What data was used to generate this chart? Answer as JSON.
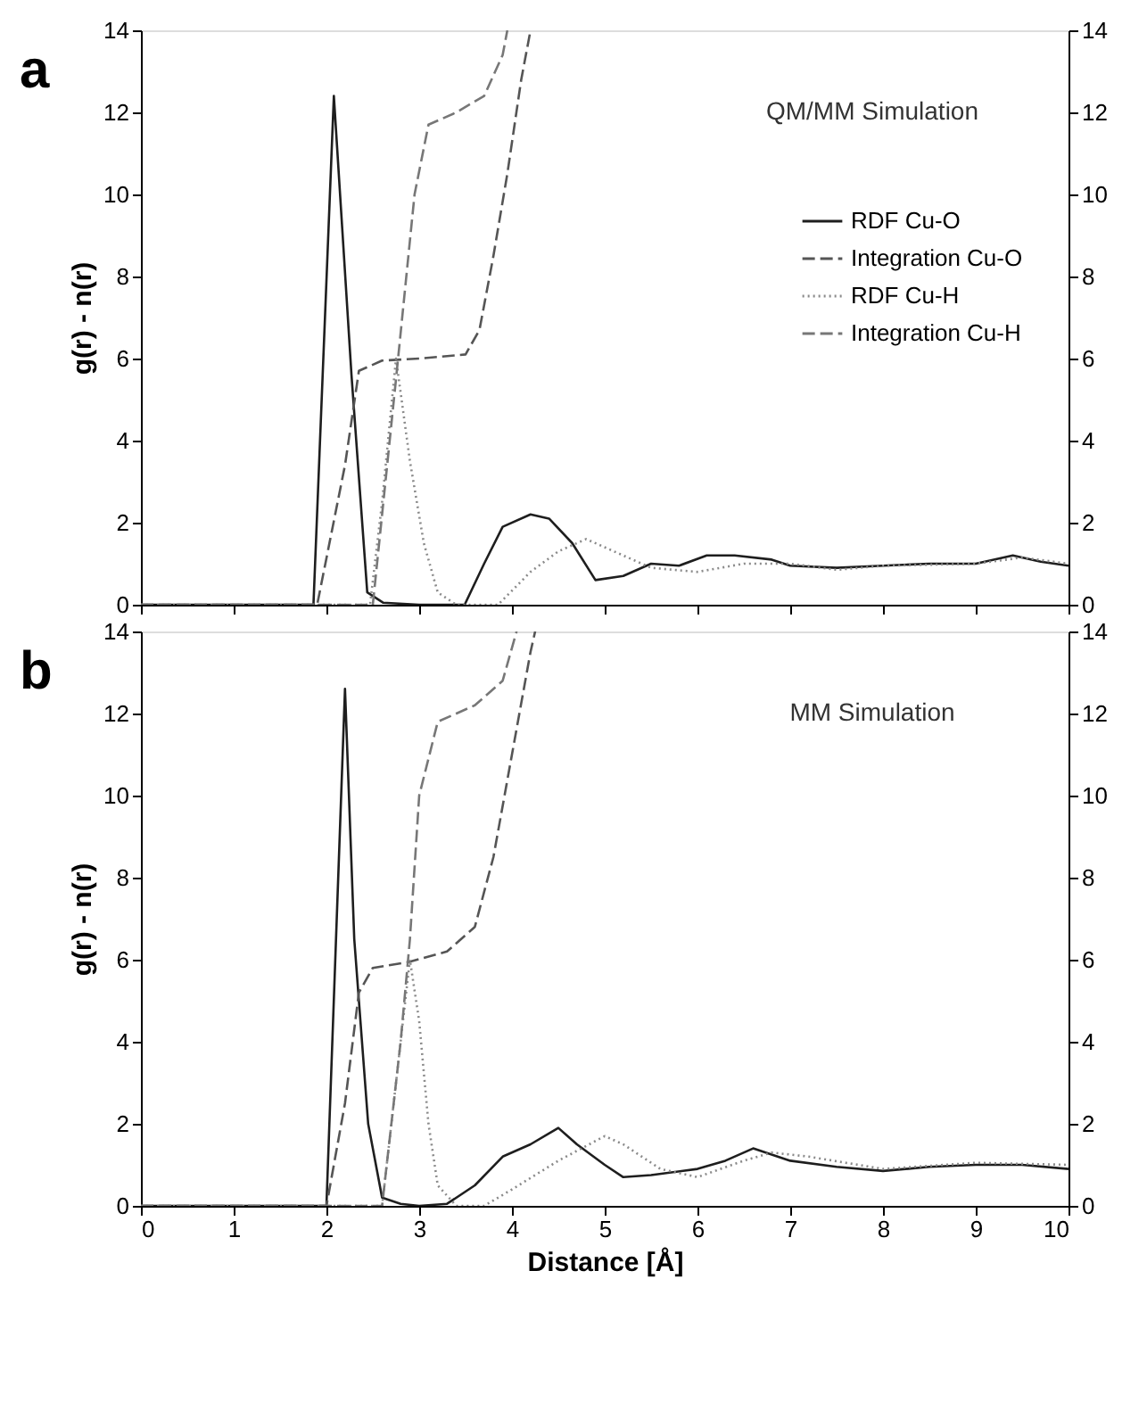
{
  "chart_data": [
    {
      "type": "line",
      "annotations": [
        "a",
        "QM/MM Simulation"
      ],
      "ylabel": "g(r) - n(r)",
      "xlim": [
        0,
        10
      ],
      "xticks": [
        0,
        1,
        2,
        3,
        4,
        5,
        6,
        7,
        8,
        9,
        10
      ],
      "ylim": [
        0,
        14
      ],
      "yticks": [
        0,
        2,
        4,
        6,
        8,
        10,
        12,
        14
      ],
      "y2lim": [
        0,
        14
      ],
      "y2ticks": [
        0,
        2,
        4,
        6,
        8,
        10,
        12,
        14
      ],
      "tick_labels": "y",
      "grid": false,
      "legend": "top right",
      "series": [
        {
          "name": "RDF Cu-O",
          "color": "#1e1e1e",
          "line_style": "solid",
          "x": [
            0,
            1.86,
            2.08,
            2.27,
            2.44,
            2.61,
            3.0,
            3.49,
            3.7,
            3.9,
            4.2,
            4.4,
            4.65,
            4.9,
            5.2,
            5.5,
            5.8,
            6.1,
            6.4,
            6.8,
            7.0,
            7.5,
            8.0,
            8.5,
            9.0,
            9.4,
            9.7,
            10
          ],
          "values": [
            0,
            0,
            12.4,
            5.6,
            0.3,
            0.05,
            0,
            0,
            1.0,
            1.9,
            2.2,
            2.1,
            1.5,
            0.6,
            0.7,
            1.0,
            0.95,
            1.2,
            1.2,
            1.1,
            0.95,
            0.9,
            0.95,
            1.0,
            1.0,
            1.2,
            1.05,
            0.95
          ]
        },
        {
          "name": "Integration Cu-O",
          "color": "#555555",
          "line_style": "dashed",
          "x": [
            0,
            1.9,
            2.2,
            2.35,
            2.6,
            3.0,
            3.5,
            3.65,
            3.8,
            3.95,
            4.1,
            4.2
          ],
          "values": [
            0,
            0,
            3.4,
            5.7,
            5.95,
            6.0,
            6.1,
            6.7,
            8.5,
            10.5,
            12.8,
            14
          ]
        },
        {
          "name": "RDF Cu-H",
          "color": "#8a8a8a",
          "line_style": "dotted",
          "x": [
            0,
            2.47,
            2.6,
            2.75,
            2.9,
            3.05,
            3.2,
            3.4,
            3.85,
            4.2,
            4.5,
            4.8,
            5.1,
            5.5,
            6.0,
            6.5,
            7.0,
            7.5,
            8.0,
            9.0,
            9.5,
            10
          ],
          "values": [
            0,
            0,
            2.5,
            6.0,
            3.5,
            1.5,
            0.3,
            0,
            0,
            0.8,
            1.3,
            1.6,
            1.3,
            0.9,
            0.8,
            1.0,
            1.0,
            0.85,
            0.95,
            1.0,
            1.15,
            1.0
          ]
        },
        {
          "name": "Integration Cu-H",
          "color": "#777777",
          "line_style": "dashed",
          "x": [
            0,
            2.5,
            2.75,
            2.95,
            3.1,
            3.4,
            3.7,
            3.9,
            3.95
          ],
          "values": [
            0,
            0,
            5.5,
            10,
            11.7,
            12,
            12.4,
            13.4,
            14
          ]
        }
      ]
    },
    {
      "type": "line",
      "annotations": [
        "b",
        "MM Simulation"
      ],
      "xlabel": "Distance [Å]",
      "ylabel": "g(r) - n(r)",
      "xlim": [
        0,
        10
      ],
      "xticks": [
        0,
        1,
        2,
        3,
        4,
        5,
        6,
        7,
        8,
        9,
        10
      ],
      "ylim": [
        0,
        14
      ],
      "yticks": [
        0,
        2,
        4,
        6,
        8,
        10,
        12,
        14
      ],
      "y2lim": [
        0,
        14
      ],
      "y2ticks": [
        0,
        2,
        4,
        6,
        8,
        10,
        12,
        14
      ],
      "grid": false,
      "legend": "top right",
      "series": [
        {
          "name": "RDF Cu-O",
          "color": "#1e1e1e",
          "line_style": "solid",
          "x": [
            0,
            2.0,
            2.2,
            2.3,
            2.35,
            2.45,
            2.6,
            2.8,
            3.0,
            3.3,
            3.6,
            3.9,
            4.2,
            4.5,
            4.7,
            5.0,
            5.2,
            5.5,
            6.0,
            6.3,
            6.6,
            7.0,
            7.5,
            8.0,
            8.5,
            9.0,
            9.5,
            10
          ],
          "values": [
            0,
            0,
            12.6,
            6.5,
            5,
            2,
            0.2,
            0.05,
            0,
            0.05,
            0.5,
            1.2,
            1.5,
            1.9,
            1.5,
            1.0,
            0.7,
            0.75,
            0.9,
            1.1,
            1.4,
            1.1,
            0.95,
            0.85,
            0.95,
            1.0,
            1.0,
            0.9
          ]
        },
        {
          "name": "Integration Cu-O",
          "color": "#555555",
          "line_style": "dashed",
          "x": [
            0,
            2.0,
            2.2,
            2.35,
            2.5,
            2.9,
            3.3,
            3.6,
            3.8,
            4.0,
            4.2,
            4.25
          ],
          "values": [
            0,
            0,
            2.5,
            5.2,
            5.8,
            5.95,
            6.2,
            6.8,
            8.5,
            11,
            13.5,
            14
          ]
        },
        {
          "name": "RDF Cu-H",
          "color": "#8a8a8a",
          "line_style": "dotted",
          "x": [
            0,
            2.6,
            2.8,
            2.9,
            3.0,
            3.1,
            3.2,
            3.4,
            3.7,
            4.0,
            4.5,
            5.0,
            5.2,
            5.6,
            6.0,
            6.5,
            6.8,
            7.2,
            8.0,
            9.0,
            10
          ],
          "values": [
            0,
            0,
            4,
            6.0,
            4.5,
            2.0,
            0.5,
            0,
            0,
            0.4,
            1.1,
            1.7,
            1.5,
            0.9,
            0.7,
            1.1,
            1.3,
            1.2,
            0.9,
            1.05,
            1.0
          ]
        },
        {
          "name": "Integration Cu-H",
          "color": "#777777",
          "line_style": "dashed",
          "x": [
            0,
            2.6,
            2.8,
            2.9,
            3.0,
            3.2,
            3.6,
            3.9,
            4.05
          ],
          "values": [
            0,
            0,
            4,
            6.5,
            10,
            11.8,
            12.2,
            12.8,
            14
          ]
        }
      ]
    }
  ]
}
